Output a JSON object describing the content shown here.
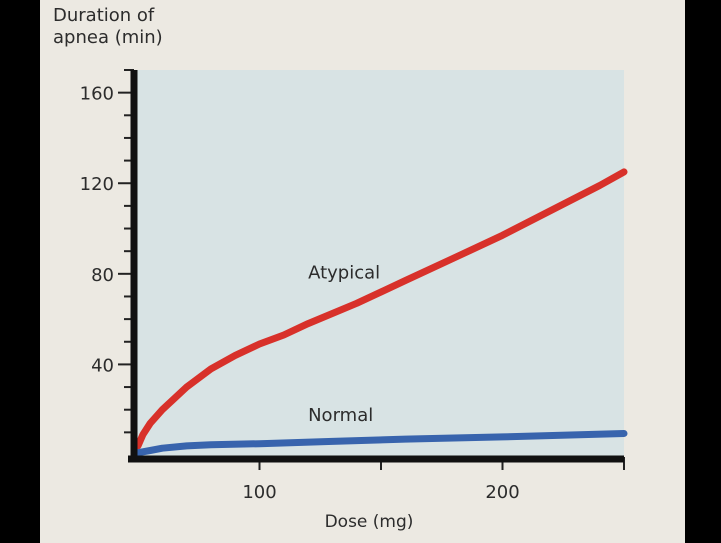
{
  "chart_data": {
    "type": "line",
    "ylabel_lines": [
      "Duration of",
      "apnea (min)"
    ],
    "xlabel": "Dose (mg)",
    "xlim": [
      50,
      250
    ],
    "ylim": [
      0,
      170
    ],
    "x_major_ticks": [
      100,
      150,
      200,
      250
    ],
    "x_tick_labels": [
      {
        "value": 100,
        "label": "100"
      },
      {
        "value": 200,
        "label": "200"
      }
    ],
    "y_minor_ticks": [
      10,
      20,
      30,
      50,
      60,
      70,
      90,
      100,
      110,
      130,
      140,
      150,
      170
    ],
    "y_tick_labels": [
      {
        "value": 40,
        "label": "40"
      },
      {
        "value": 80,
        "label": "80"
      },
      {
        "value": 120,
        "label": "120"
      },
      {
        "value": 160,
        "label": "160"
      }
    ],
    "series": [
      {
        "name": "Atypical",
        "color": "#d8312a",
        "x": [
          50,
          52,
          55,
          60,
          65,
          70,
          80,
          90,
          100,
          110,
          120,
          140,
          160,
          180,
          200,
          220,
          240,
          250
        ],
        "y": [
          4,
          9,
          14,
          20,
          25,
          30,
          38,
          44,
          49,
          53,
          58,
          67,
          77,
          87,
          97,
          108,
          119,
          125
        ]
      },
      {
        "name": "Normal",
        "color": "#3864ad",
        "x": [
          50,
          55,
          60,
          70,
          80,
          100,
          130,
          160,
          200,
          250
        ],
        "y": [
          1,
          2,
          3,
          4,
          4.5,
          5,
          6,
          7,
          8,
          9.5
        ]
      }
    ],
    "annotations": [
      {
        "text": "Atypical",
        "x": 120,
        "y": 78
      },
      {
        "text": "Normal",
        "x": 120,
        "y": 15
      }
    ]
  }
}
